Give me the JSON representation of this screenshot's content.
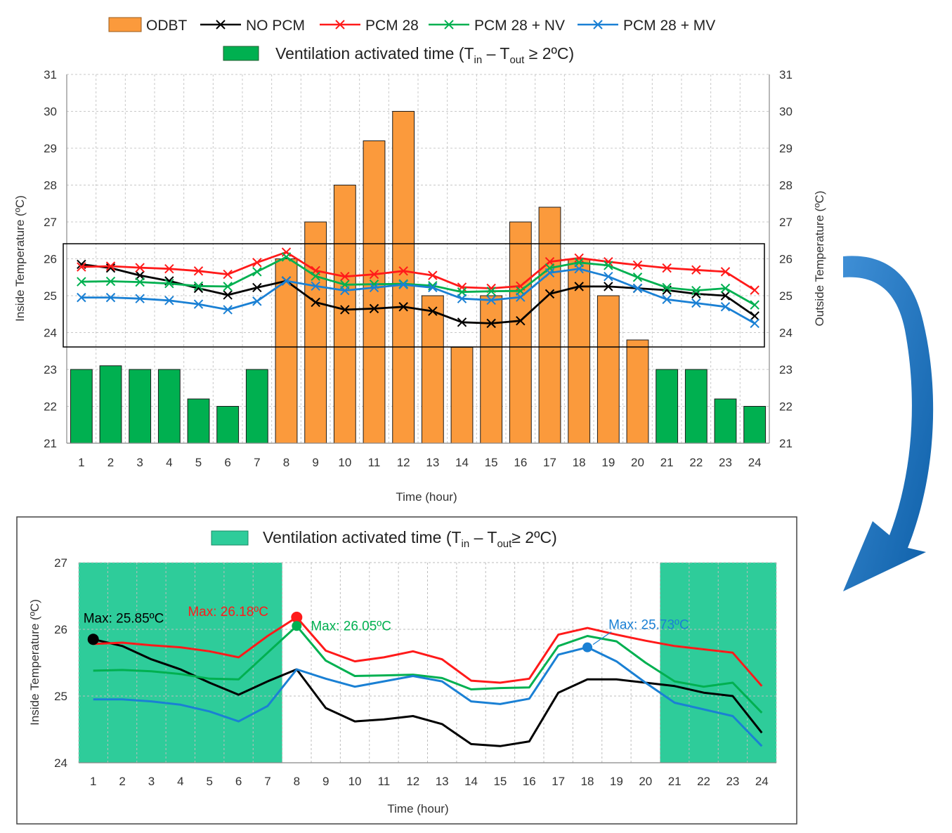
{
  "colors": {
    "odbt": "#fb9a3c",
    "vent_top": "#00b050",
    "vent_bottom": "#2ecc9a",
    "no_pcm": "#000000",
    "pcm28": "#ff1a1a",
    "pcm28_nv": "#00b050",
    "pcm28_mv": "#1a80d4",
    "arrow": "#1a7ac8"
  },
  "top_legend": {
    "items": [
      "ODBT",
      "NO PCM",
      "PCM 28",
      "PCM 28 + NV",
      "PCM 28 + MV"
    ],
    "ventilation": {
      "main": "Ventilation activated time (T",
      "sub_in": "in",
      "mid": " – T",
      "sub_out": "out",
      "tail": " ≥ 2ºC)"
    }
  },
  "bottom_legend": {
    "ventilation": {
      "main": "Ventilation activated time (T",
      "sub_in": "in",
      "mid": " – T",
      "sub_out": "out",
      "tail": "≥ 2ºC)"
    }
  },
  "chart_data": [
    {
      "type": "bar+line",
      "title": "",
      "xlabel": "Time (hour)",
      "ylabel_left": "Inside Temperature (ºC)",
      "ylabel_right": "Outside Temperature (ºC)",
      "ylim": [
        21,
        31
      ],
      "yticks": [
        21,
        22,
        23,
        24,
        25,
        26,
        27,
        28,
        29,
        30,
        31
      ],
      "categories": [
        1,
        2,
        3,
        4,
        5,
        6,
        7,
        8,
        9,
        10,
        11,
        12,
        13,
        14,
        15,
        16,
        17,
        18,
        19,
        20,
        21,
        22,
        23,
        24
      ],
      "bars": {
        "name": "ODBT",
        "values": [
          23.0,
          23.1,
          23.0,
          23.0,
          22.2,
          22.0,
          23.0,
          26.0,
          27.0,
          28.0,
          29.2,
          30.0,
          25.0,
          23.6,
          25.0,
          27.0,
          27.4,
          26.0,
          25.0,
          23.8,
          23.0,
          23.0,
          22.2,
          22.0
        ],
        "ventilation_hours": [
          1,
          2,
          3,
          4,
          5,
          6,
          7,
          21,
          22,
          23,
          24
        ]
      },
      "series": [
        {
          "name": "NO PCM",
          "values": [
            25.85,
            25.75,
            25.55,
            25.4,
            25.2,
            25.02,
            25.22,
            25.4,
            24.82,
            24.62,
            24.65,
            24.7,
            24.58,
            24.28,
            24.25,
            24.32,
            25.05,
            25.25,
            25.25,
            25.2,
            25.15,
            25.05,
            25.0,
            24.45
          ]
        },
        {
          "name": "PCM 28",
          "values": [
            25.78,
            25.8,
            25.76,
            25.73,
            25.67,
            25.58,
            25.9,
            26.18,
            25.68,
            25.52,
            25.58,
            25.67,
            25.55,
            25.23,
            25.2,
            25.26,
            25.92,
            26.02,
            25.92,
            25.83,
            25.75,
            25.7,
            25.65,
            25.15
          ]
        },
        {
          "name": "PCM 28 + NV",
          "values": [
            25.38,
            25.39,
            25.37,
            25.33,
            25.26,
            25.25,
            25.65,
            26.05,
            25.53,
            25.3,
            25.31,
            25.32,
            25.27,
            25.1,
            25.12,
            25.13,
            25.75,
            25.9,
            25.82,
            25.5,
            25.22,
            25.14,
            25.2,
            24.75
          ]
        },
        {
          "name": "PCM 28 + MV",
          "values": [
            24.95,
            24.95,
            24.92,
            24.87,
            24.77,
            24.62,
            24.85,
            25.4,
            25.26,
            25.14,
            25.22,
            25.3,
            25.22,
            24.92,
            24.88,
            24.96,
            25.62,
            25.73,
            25.52,
            25.2,
            24.9,
            24.8,
            24.7,
            24.25
          ]
        }
      ]
    },
    {
      "type": "line",
      "title": "",
      "xlabel": "Time (hour)",
      "ylabel": "Inside Temperature (ºC)",
      "ylim": [
        24,
        27
      ],
      "yticks": [
        24,
        25,
        26,
        27
      ],
      "categories": [
        1,
        2,
        3,
        4,
        5,
        6,
        7,
        8,
        9,
        10,
        11,
        12,
        13,
        14,
        15,
        16,
        17,
        18,
        19,
        20,
        21,
        22,
        23,
        24
      ],
      "ventilation_spans": [
        [
          0.5,
          7.5
        ],
        [
          20.5,
          24.5
        ]
      ],
      "annotations": [
        {
          "series": "NO PCM",
          "label": "Max: 25.85ºC",
          "hour": 1,
          "value": 25.85
        },
        {
          "series": "PCM 28",
          "label": "Max: 26.18ºC",
          "hour": 8,
          "value": 26.18
        },
        {
          "series": "PCM 28 + NV",
          "label": "Max: 26.05ºC",
          "hour": 8,
          "value": 26.05
        },
        {
          "series": "PCM 28 + MV",
          "label": "Max: 25.73ºC",
          "hour": 18,
          "value": 25.73
        }
      ]
    }
  ]
}
